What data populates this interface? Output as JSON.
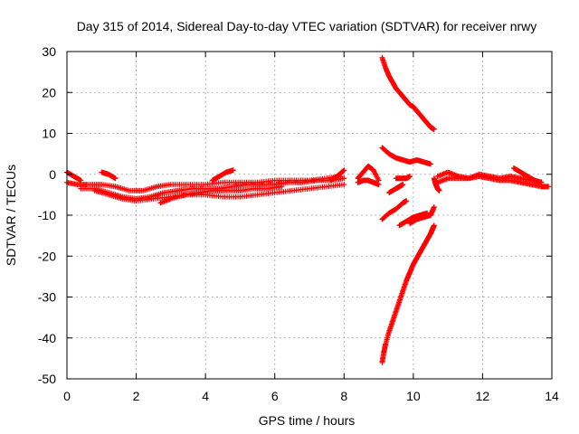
{
  "chart_data": {
    "type": "scatter",
    "title": "Day 315 of 2014, Sidereal Day-to-day VTEC variation (SDTVAR) for receiver nrwy",
    "xlabel": "GPS time / hours",
    "ylabel": "SDTVAR / TECUs",
    "xlim": [
      0,
      14
    ],
    "ylim": [
      -50,
      30
    ],
    "xticks": [
      0,
      2,
      4,
      6,
      8,
      10,
      12,
      14
    ],
    "yticks": [
      -50,
      -40,
      -30,
      -20,
      -10,
      0,
      10,
      20,
      30
    ],
    "grid": true,
    "marker": "+",
    "color": "#ff0000",
    "series": [
      {
        "x": [
          0,
          0.3,
          0.6,
          1.0,
          1.4,
          1.8,
          2.2,
          2.6,
          3.0,
          3.5,
          4.0,
          4.5,
          5.0,
          5.5,
          6.0,
          6.5,
          7.0,
          7.5,
          7.9
        ],
        "y": [
          -2,
          -2.5,
          -2.5,
          -2.5,
          -3,
          -4,
          -4,
          -3,
          -2.5,
          -2.5,
          -2.5,
          -2,
          -2,
          -2,
          -1.5,
          -1.5,
          -1.5,
          -1,
          -0.5
        ]
      },
      {
        "x": [
          0.4,
          0.8,
          1.2,
          1.6,
          2.0,
          2.4,
          2.8,
          3.2,
          3.6,
          4.0,
          4.4,
          4.8,
          5.2,
          5.6,
          6.0,
          6.4,
          6.8,
          7.2,
          7.6,
          8.0
        ],
        "y": [
          -3.5,
          -3.5,
          -4.5,
          -5.5,
          -6,
          -5.5,
          -4.5,
          -4,
          -3.5,
          -3.5,
          -3.5,
          -3,
          -2.5,
          -2.5,
          -2.5,
          -2,
          -2,
          -1.5,
          -1.5,
          -1
        ]
      },
      {
        "x": [
          0.8,
          1.2,
          1.6,
          2.0,
          2.5,
          3.0,
          3.5,
          4.0,
          4.5,
          5.0,
          5.5,
          6.0,
          6.5,
          7.0,
          7.5,
          8.0
        ],
        "y": [
          -4,
          -5,
          -6,
          -6.5,
          -6,
          -5.5,
          -5,
          -5,
          -5.5,
          -5.5,
          -5,
          -4.5,
          -4,
          -3.5,
          -3,
          -2.5
        ]
      },
      {
        "x": [
          2.7,
          3.0,
          3.4,
          3.8,
          4.2,
          4.6,
          5.0,
          5.4,
          5.8,
          6.2
        ],
        "y": [
          -7,
          -6,
          -5,
          -4.5,
          -4,
          -4,
          -4,
          -3.5,
          -3.5,
          -3
        ]
      },
      {
        "x": [
          0.0,
          0.2,
          0.4
        ],
        "y": [
          0.5,
          -0.5,
          -1.5
        ]
      },
      {
        "x": [
          1.0,
          1.2,
          1.4
        ],
        "y": [
          0.5,
          0,
          -1
        ]
      },
      {
        "x": [
          4.2,
          4.4,
          4.6,
          4.8
        ],
        "y": [
          -1.5,
          -0.5,
          0.5,
          1
        ]
      },
      {
        "x": [
          7.6,
          7.8,
          8.0
        ],
        "y": [
          -1.5,
          -0.5,
          1
        ]
      },
      {
        "x": [
          8.4,
          8.55,
          8.7,
          8.85,
          9.0
        ],
        "y": [
          -1,
          0.5,
          2,
          1,
          -1.5
        ]
      },
      {
        "x": [
          8.4,
          8.55,
          8.7,
          8.85,
          9.0
        ],
        "y": [
          -2,
          -1.5,
          -1.5,
          -2,
          -2.5
        ]
      },
      {
        "x": [
          9.1,
          9.2,
          9.3,
          9.4,
          9.5,
          9.6,
          9.7,
          9.8,
          9.9,
          10.0,
          10.1,
          10.2,
          10.3,
          10.4,
          10.5,
          10.6
        ],
        "y": [
          28.5,
          26,
          24,
          22.5,
          21,
          20,
          19,
          18,
          17,
          16.5,
          15.5,
          14.5,
          13.5,
          12.5,
          11.5,
          11
        ]
      },
      {
        "x": [
          9.1,
          9.3,
          9.5,
          9.7,
          9.9,
          10.1,
          10.3,
          10.5
        ],
        "y": [
          6.5,
          5,
          4,
          3.5,
          3,
          3.5,
          3,
          2.5
        ]
      },
      {
        "x": [
          9.1,
          9.3,
          9.5,
          9.7,
          9.8
        ],
        "y": [
          -11,
          -9.5,
          -8.5,
          -7,
          -6.5
        ]
      },
      {
        "x": [
          9.3,
          9.5,
          9.6,
          9.7
        ],
        "y": [
          -4.5,
          -3.5,
          -3,
          -2.5
        ]
      },
      {
        "x": [
          9.5,
          9.7,
          9.8,
          9.9
        ],
        "y": [
          -1,
          -1,
          -1,
          -0.5
        ]
      },
      {
        "x": [
          9.9,
          10.1,
          10.3,
          10.5,
          10.6
        ],
        "y": [
          -12,
          -11,
          -10.5,
          -10,
          -8
        ]
      },
      {
        "x": [
          9.6,
          9.8,
          10.0,
          10.2,
          10.4
        ],
        "y": [
          -12.5,
          -11.5,
          -10.5,
          -10,
          -9.5
        ]
      },
      {
        "x": [
          10.6,
          10.55,
          10.5,
          10.4,
          10.3,
          10.2,
          10.1,
          10.0,
          9.9,
          9.8,
          9.7,
          9.6,
          9.5,
          9.4,
          9.3,
          9.2,
          9.15,
          9.1
        ],
        "y": [
          -12.5,
          -13.5,
          -14.5,
          -16,
          -17.5,
          -19,
          -20.5,
          -22,
          -24,
          -26,
          -28.5,
          -31,
          -33.5,
          -36,
          -38.5,
          -41.5,
          -43.5,
          -46
        ]
      },
      {
        "x": [
          10.7,
          11.0,
          11.3,
          11.6,
          11.9,
          12.2,
          12.5,
          12.8,
          13.1,
          13.4,
          13.7,
          13.9
        ],
        "y": [
          -2,
          -1,
          -1,
          -1,
          -0.5,
          -1,
          -1.5,
          -1.5,
          -2,
          -2.5,
          -3,
          -3
        ]
      },
      {
        "x": [
          10.7,
          11.0,
          11.3,
          11.6,
          11.9,
          12.2,
          12.5,
          12.8,
          13.1,
          13.4,
          13.7
        ],
        "y": [
          -0.5,
          0.5,
          -0.5,
          -1,
          0,
          -0.5,
          -1,
          -0.5,
          -1,
          -1.5,
          -2
        ]
      },
      {
        "x": [
          10.6,
          10.65,
          10.7,
          10.75
        ],
        "y": [
          -1,
          -2.5,
          -3.5,
          -4
        ]
      },
      {
        "x": [
          12.9,
          13.1,
          13.3,
          13.5,
          13.7
        ],
        "y": [
          1.5,
          0.5,
          -0.5,
          -1.5,
          -2
        ]
      }
    ]
  }
}
